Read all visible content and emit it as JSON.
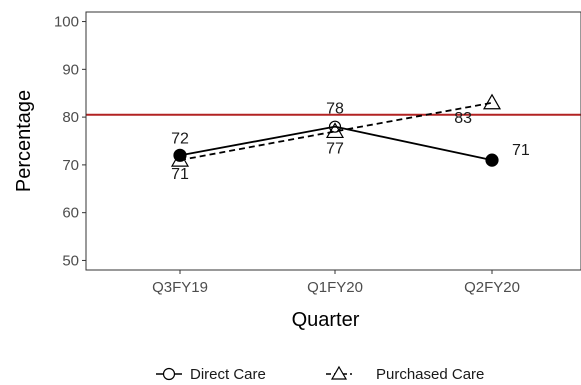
{
  "chart_data": {
    "type": "line",
    "title": "",
    "xlabel": "Quarter",
    "ylabel": "Percentage",
    "categories": [
      "Q3FY19",
      "Q1FY20",
      "Q2FY20"
    ],
    "ylim": [
      48,
      102
    ],
    "yticks": [
      50,
      60,
      70,
      80,
      90,
      100
    ],
    "grid": false,
    "reference_line": {
      "value": 80.5,
      "color": "#b22222"
    },
    "legend_position": "bottom",
    "series": [
      {
        "name": "Direct Care",
        "values": [
          72,
          78,
          71
        ],
        "labels": [
          "72",
          "78",
          "71"
        ],
        "marker": "circle",
        "line_style": "solid",
        "color": "#000000",
        "point_fill": [
          "filled",
          "open",
          "filled"
        ]
      },
      {
        "name": "Purchased Care",
        "values": [
          71,
          77,
          83
        ],
        "labels": [
          "71",
          "77",
          "83"
        ],
        "marker": "triangle",
        "line_style": "dashed",
        "color": "#000000",
        "point_fill": [
          "open",
          "open",
          "open"
        ]
      }
    ]
  }
}
